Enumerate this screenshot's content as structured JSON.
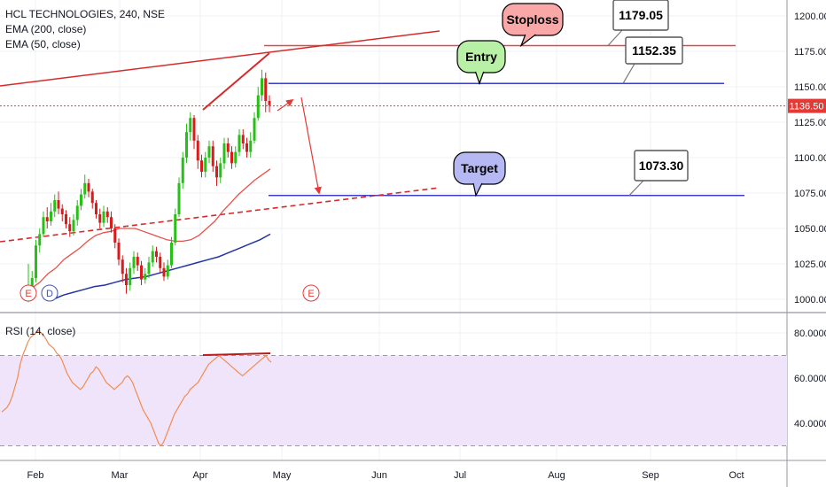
{
  "legend": {
    "symbol": "HCL TECHNOLOGIES, 240, NSE",
    "ema200": "EMA (200, close)",
    "ema50": "EMA (50, close)",
    "rsi": "RSI (14, close)"
  },
  "colors": {
    "bull": "#26c017",
    "bear": "#d91b1b",
    "ema50": "#e8514b",
    "ema200": "#2434a6",
    "level": "#3b3fc6",
    "stoploss": "#e84545",
    "trendline": "#d62a2a",
    "rsi": "#f28b50",
    "rsi_band": "#f0e4fb",
    "last_price_bg": "#e53935"
  },
  "chart_data": [
    {
      "type": "candlestick",
      "x_axis": {
        "labels": [
          "Feb",
          "Mar",
          "Apr",
          "May",
          "Jun",
          "Jul",
          "Aug",
          "Sep",
          "Oct"
        ]
      },
      "y_axis": {
        "ticks": [
          "1000.00",
          "1025.00",
          "1050.00",
          "1075.00",
          "1100.00",
          "1125.00",
          "1150.00",
          "1175.00",
          "1200.00"
        ],
        "range": [
          995,
          1212
        ]
      },
      "last_price": "1136.50",
      "levels": [
        {
          "name": "Stoploss",
          "price": 1179.05,
          "label": "1179.05"
        },
        {
          "name": "Entry",
          "price": 1152.35,
          "label": "1152.35"
        },
        {
          "name": "Target",
          "price": 1073.3,
          "label": "1073.30"
        }
      ],
      "callouts": {
        "stoploss": "Stoploss",
        "entry": "Entry",
        "target": "Target"
      },
      "events": [
        "E",
        "D",
        "E"
      ],
      "candles": [
        [
          1000,
          1008,
          1025,
          998
        ],
        [
          1008,
          1015,
          1020,
          1004
        ],
        [
          1015,
          1038,
          1042,
          1012
        ],
        [
          1038,
          1046,
          1050,
          1033
        ],
        [
          1046,
          1058,
          1062,
          1044
        ],
        [
          1058,
          1055,
          1065,
          1050
        ],
        [
          1055,
          1062,
          1068,
          1052
        ],
        [
          1062,
          1070,
          1074,
          1058
        ],
        [
          1070,
          1064,
          1076,
          1060
        ],
        [
          1064,
          1060,
          1067,
          1055
        ],
        [
          1060,
          1053,
          1063,
          1050
        ],
        [
          1053,
          1048,
          1058,
          1044
        ],
        [
          1048,
          1056,
          1060,
          1045
        ],
        [
          1056,
          1066,
          1070,
          1052
        ],
        [
          1066,
          1074,
          1078,
          1063
        ],
        [
          1074,
          1082,
          1088,
          1071
        ],
        [
          1082,
          1076,
          1085,
          1072
        ],
        [
          1076,
          1068,
          1078,
          1064
        ],
        [
          1068,
          1060,
          1070,
          1057
        ],
        [
          1060,
          1054,
          1064,
          1050
        ],
        [
          1054,
          1062,
          1066,
          1051
        ],
        [
          1062,
          1058,
          1065,
          1054
        ],
        [
          1058,
          1050,
          1062,
          1047
        ],
        [
          1050,
          1040,
          1053,
          1036
        ],
        [
          1040,
          1028,
          1043,
          1024
        ],
        [
          1028,
          1018,
          1031,
          1012
        ],
        [
          1018,
          1010,
          1022,
          1004
        ],
        [
          1010,
          1022,
          1026,
          1006
        ],
        [
          1022,
          1030,
          1034,
          1018
        ],
        [
          1030,
          1024,
          1033,
          1020
        ],
        [
          1024,
          1014,
          1027,
          1010
        ],
        [
          1014,
          1018,
          1022,
          1011
        ],
        [
          1018,
          1026,
          1030,
          1015
        ],
        [
          1026,
          1034,
          1038,
          1023
        ],
        [
          1034,
          1030,
          1037,
          1026
        ],
        [
          1030,
          1022,
          1033,
          1019
        ],
        [
          1022,
          1016,
          1026,
          1013
        ],
        [
          1016,
          1024,
          1028,
          1014
        ],
        [
          1024,
          1040,
          1044,
          1022
        ],
        [
          1040,
          1060,
          1064,
          1038
        ],
        [
          1060,
          1082,
          1086,
          1058
        ],
        [
          1082,
          1100,
          1104,
          1078
        ],
        [
          1100,
          1118,
          1124,
          1096
        ],
        [
          1118,
          1128,
          1132,
          1112
        ],
        [
          1128,
          1112,
          1130,
          1106
        ],
        [
          1112,
          1098,
          1116,
          1092
        ],
        [
          1098,
          1090,
          1102,
          1086
        ],
        [
          1090,
          1100,
          1104,
          1086
        ],
        [
          1100,
          1108,
          1112,
          1096
        ],
        [
          1108,
          1094,
          1112,
          1090
        ],
        [
          1094,
          1086,
          1098,
          1080
        ],
        [
          1086,
          1096,
          1100,
          1082
        ],
        [
          1096,
          1110,
          1114,
          1092
        ],
        [
          1110,
          1104,
          1114,
          1100
        ],
        [
          1104,
          1096,
          1108,
          1092
        ],
        [
          1096,
          1104,
          1108,
          1093
        ],
        [
          1104,
          1116,
          1120,
          1101
        ],
        [
          1116,
          1110,
          1120,
          1106
        ],
        [
          1110,
          1104,
          1114,
          1100
        ],
        [
          1104,
          1112,
          1118,
          1100
        ],
        [
          1112,
          1128,
          1132,
          1110
        ],
        [
          1128,
          1144,
          1150,
          1126
        ],
        [
          1144,
          1156,
          1162,
          1140
        ],
        [
          1156,
          1140,
          1160,
          1132
        ],
        [
          1140,
          1137,
          1144,
          1132
        ]
      ],
      "ema50": [
        1008,
        1012,
        1018,
        1022,
        1028,
        1032,
        1036,
        1041,
        1045,
        1047,
        1048,
        1050,
        1050,
        1050,
        1048,
        1046,
        1044,
        1042,
        1041,
        1041,
        1042,
        1045,
        1050,
        1055,
        1062,
        1068,
        1074,
        1079,
        1084,
        1088,
        1092
      ],
      "ema200": [
        1000,
        1003,
        1005,
        1007,
        1009,
        1010,
        1012,
        1014,
        1015,
        1016,
        1018,
        1020,
        1022,
        1024,
        1026,
        1028,
        1030,
        1033,
        1036,
        1039,
        1042,
        1046
      ]
    },
    {
      "type": "line",
      "name": "RSI (14, close)",
      "y_axis": {
        "ticks": [
          "40.0000",
          "60.0000",
          "80.0000"
        ],
        "range": [
          25,
          86
        ]
      },
      "bands": [
        70,
        30
      ],
      "values": [
        45,
        46,
        47,
        49,
        52,
        56,
        60,
        66,
        70,
        73,
        76,
        78,
        79,
        80,
        81,
        80,
        79,
        77,
        75,
        74,
        73,
        71,
        70,
        68,
        65,
        62,
        60,
        58,
        57,
        56,
        55,
        56,
        58,
        60,
        62,
        63,
        65,
        64,
        62,
        60,
        58,
        57,
        56,
        55,
        56,
        57,
        58,
        60,
        61,
        60,
        58,
        55,
        52,
        49,
        46,
        44,
        42,
        40,
        37,
        34,
        31,
        30,
        32,
        35,
        38,
        41,
        44,
        46,
        48,
        50,
        52,
        53,
        55,
        56,
        57,
        58,
        60,
        62,
        64,
        66,
        67,
        68,
        69,
        70,
        69,
        68,
        67,
        66,
        65,
        64,
        63,
        62,
        61,
        62,
        63,
        64,
        65,
        66,
        67,
        68,
        69,
        70,
        68,
        67
      ]
    }
  ]
}
